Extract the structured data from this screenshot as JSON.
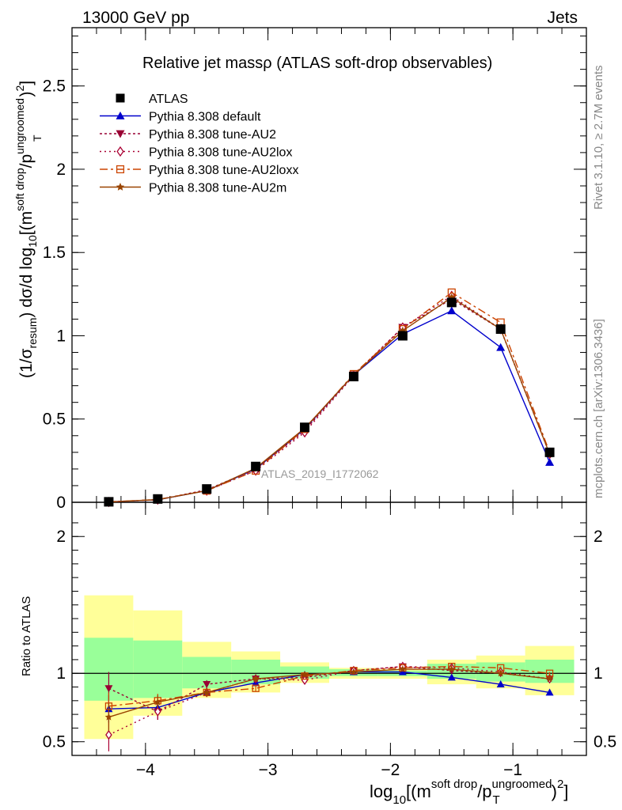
{
  "header": {
    "left": "13000 GeV pp",
    "right": "Jets"
  },
  "side_text": {
    "rivet": "Rivet 3.1.10, ≥ 2.7M events",
    "mcplots": "mcplots.cern.ch [arXiv:1306.3436]"
  },
  "chart_data": {
    "type": "line",
    "title": "Relative jet massρ (ATLAS soft-drop observables)",
    "watermark": "ATLAS_2019_I1772062",
    "xlabel_main": "log",
    "xlabel_parts": {
      "sub10": "10",
      "open": "[(m",
      "sup1": "soft drop",
      "slash": "/p",
      "sup2": "ungroomed",
      "subT": "T",
      "close": ")",
      "sq": "2",
      "end": "]"
    },
    "ylabel_main": {
      "p1": "(1/σ",
      "sub1": "resum",
      "p2": ") dσ/d log",
      "sub2": "10",
      "p3": "[(m",
      "sup3": "soft drop",
      "p4": "/p",
      "sup4": "ungroomed",
      "subT": "T",
      "p5": ")",
      "sq": "2",
      "p6": "]"
    },
    "ylabel_ratio": "Ratio to ATLAS",
    "xlim": [
      -4.6,
      -0.4
    ],
    "ylim_main": [
      0,
      2.85
    ],
    "ylim_ratio": [
      0.4,
      2.25
    ],
    "x_ticks": [
      -4,
      -3,
      -2,
      -1
    ],
    "x_tick_labels": [
      "−4",
      "−3",
      "−2",
      "−1"
    ],
    "y_ticks_main": [
      0,
      0.5,
      1,
      1.5,
      2,
      2.5
    ],
    "y_tick_labels_main": [
      "0",
      "0.5",
      "1",
      "1.5",
      "2",
      "2.5"
    ],
    "y_ticks_ratio": [
      0.5,
      1,
      2
    ],
    "y_tick_labels_ratio": [
      "0.5",
      "1",
      "2"
    ],
    "x": [
      -4.3,
      -3.9,
      -3.5,
      -3.1,
      -2.7,
      -2.3,
      -1.9,
      -1.5,
      -1.1,
      -0.7
    ],
    "bin_edges": [
      -4.5,
      -4.1,
      -3.7,
      -3.3,
      -2.9,
      -2.5,
      -2.1,
      -1.7,
      -1.3,
      -0.9,
      -0.5
    ],
    "band_inner": [
      [
        0.8,
        1.26
      ],
      [
        0.82,
        1.24
      ],
      [
        0.89,
        1.12
      ],
      [
        0.92,
        1.1
      ],
      [
        0.96,
        1.05
      ],
      [
        0.98,
        1.03
      ],
      [
        0.98,
        1.02
      ],
      [
        0.96,
        1.07
      ],
      [
        0.94,
        1.08
      ],
      [
        0.93,
        1.1
      ]
    ],
    "band_outer": [
      [
        0.52,
        1.57
      ],
      [
        0.69,
        1.46
      ],
      [
        0.82,
        1.23
      ],
      [
        0.86,
        1.16
      ],
      [
        0.93,
        1.08
      ],
      [
        0.96,
        1.04
      ],
      [
        0.96,
        1.03
      ],
      [
        0.92,
        1.1
      ],
      [
        0.89,
        1.13
      ],
      [
        0.84,
        1.2
      ]
    ],
    "series": [
      {
        "name": "ATLAS",
        "color": "#000000",
        "marker": "square-filled",
        "dash": "none",
        "values": [
          0.003,
          0.02,
          0.08,
          0.215,
          0.45,
          0.755,
          1.0,
          1.2,
          1.04,
          0.3
        ]
      },
      {
        "name": "Pythia 8.308 default",
        "color": "#0000cc",
        "marker": "triangle-up-filled",
        "dash": "solid",
        "values": [
          0.002,
          0.015,
          0.07,
          0.2,
          0.44,
          0.765,
          1.01,
          1.15,
          0.93,
          0.24
        ],
        "ratio": [
          0.74,
          0.75,
          0.86,
          0.93,
          0.99,
          1.01,
          1.01,
          0.97,
          0.92,
          0.86
        ],
        "ratio_err": [
          0.1,
          0.05,
          0.03,
          0.02,
          0.01,
          0.01,
          0.01,
          0.01,
          0.01,
          0.01
        ]
      },
      {
        "name": "Pythia 8.308 tune-AU2",
        "color": "#990033",
        "marker": "triangle-down-filled",
        "dash": "3,3",
        "values": [
          0.003,
          0.015,
          0.075,
          0.2,
          0.43,
          0.765,
          1.05,
          1.22,
          1.04,
          0.29
        ],
        "ratio": [
          0.89,
          0.72,
          0.92,
          0.96,
          0.97,
          1.02,
          1.05,
          1.02,
          1.0,
          0.96
        ],
        "ratio_err": [
          0.12,
          0.06,
          0.03,
          0.02,
          0.01,
          0.01,
          0.01,
          0.01,
          0.01,
          0.01
        ]
      },
      {
        "name": "Pythia 8.308 tune-AU2lox",
        "color": "#aa0033",
        "marker": "diamond-open",
        "dash": "2,4",
        "values": [
          0.002,
          0.016,
          0.07,
          0.19,
          0.42,
          0.76,
          1.05,
          1.24,
          1.04,
          0.29
        ],
        "ratio": [
          0.55,
          0.72,
          0.86,
          0.96,
          0.95,
          1.02,
          1.05,
          1.04,
          1.01,
          0.96
        ],
        "ratio_err": [
          0.12,
          0.06,
          0.03,
          0.02,
          0.01,
          0.01,
          0.01,
          0.01,
          0.01,
          0.01
        ]
      },
      {
        "name": "Pythia 8.308 tune-AU2loxx",
        "color": "#cc4400",
        "marker": "square-open",
        "dash": "10,4,3,4",
        "values": [
          0.002,
          0.017,
          0.07,
          0.19,
          0.44,
          0.77,
          1.04,
          1.26,
          1.08,
          0.3
        ],
        "ratio": [
          0.76,
          0.8,
          0.86,
          0.89,
          0.98,
          1.02,
          1.04,
          1.05,
          1.04,
          1.0
        ],
        "ratio_err": [
          0.1,
          0.05,
          0.03,
          0.02,
          0.01,
          0.01,
          0.01,
          0.01,
          0.01,
          0.01
        ]
      },
      {
        "name": "Pythia 8.308 tune-AU2m",
        "color": "#994400",
        "marker": "star",
        "dash": "solid",
        "values": [
          0.002,
          0.016,
          0.07,
          0.205,
          0.445,
          0.765,
          1.03,
          1.23,
          1.04,
          0.29
        ],
        "ratio": [
          0.68,
          0.79,
          0.86,
          0.96,
          0.99,
          1.01,
          1.03,
          1.03,
          1.0,
          0.96
        ],
        "ratio_err": [
          0.1,
          0.05,
          0.03,
          0.02,
          0.01,
          0.01,
          0.01,
          0.01,
          0.01,
          0.01
        ]
      }
    ],
    "legend_position": "top-left",
    "band_colors": {
      "inner": "#99ff99",
      "outer": "#ffff99"
    }
  }
}
